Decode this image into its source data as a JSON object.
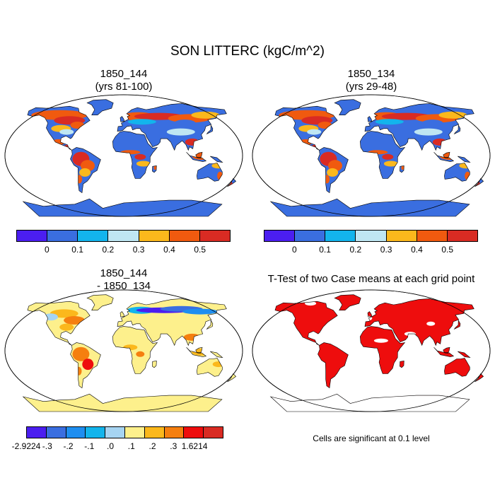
{
  "title": "SON LITTERC (kgC/m^2)",
  "panels": {
    "top_left": {
      "line1": "1850_144",
      "line2": "(yrs 81-100)"
    },
    "top_right": {
      "line1": "1850_134",
      "line2": "(yrs 29-48)"
    },
    "bottom_left": {
      "line1": "1850_144",
      "line2": "- 1850_134"
    },
    "bottom_right": {
      "title": "T-Test of two Case means at each grid point",
      "note": "Cells are significant at 0.1 level"
    }
  },
  "colorbar_top": {
    "colors": [
      "#4b1ef0",
      "#3a6ee0",
      "#13b4ec",
      "#bfe6f2",
      "#fbb81c",
      "#f05a0f",
      "#d92b23"
    ],
    "ticks": [
      "0",
      "0.1",
      "0.2",
      "0.3",
      "0.4",
      "0.5"
    ]
  },
  "colorbar_bottom": {
    "colors": [
      "#4b1ef0",
      "#3a6ee0",
      "#1e8ef0",
      "#13b4ec",
      "#a6d4f2",
      "#fdf08c",
      "#fbb81c",
      "#f57f0f",
      "#ee0d0d",
      "#d92b23"
    ],
    "ticks": [
      "-2.9224",
      "-.3",
      "-.2",
      "-.1",
      ".0",
      ".1",
      ".2",
      ".3",
      "1.6214"
    ]
  },
  "colors": {
    "top_base": "#3a6ee0",
    "diff_base": "#fdf08c",
    "ttest_fill": "#ee0d0d"
  }
}
